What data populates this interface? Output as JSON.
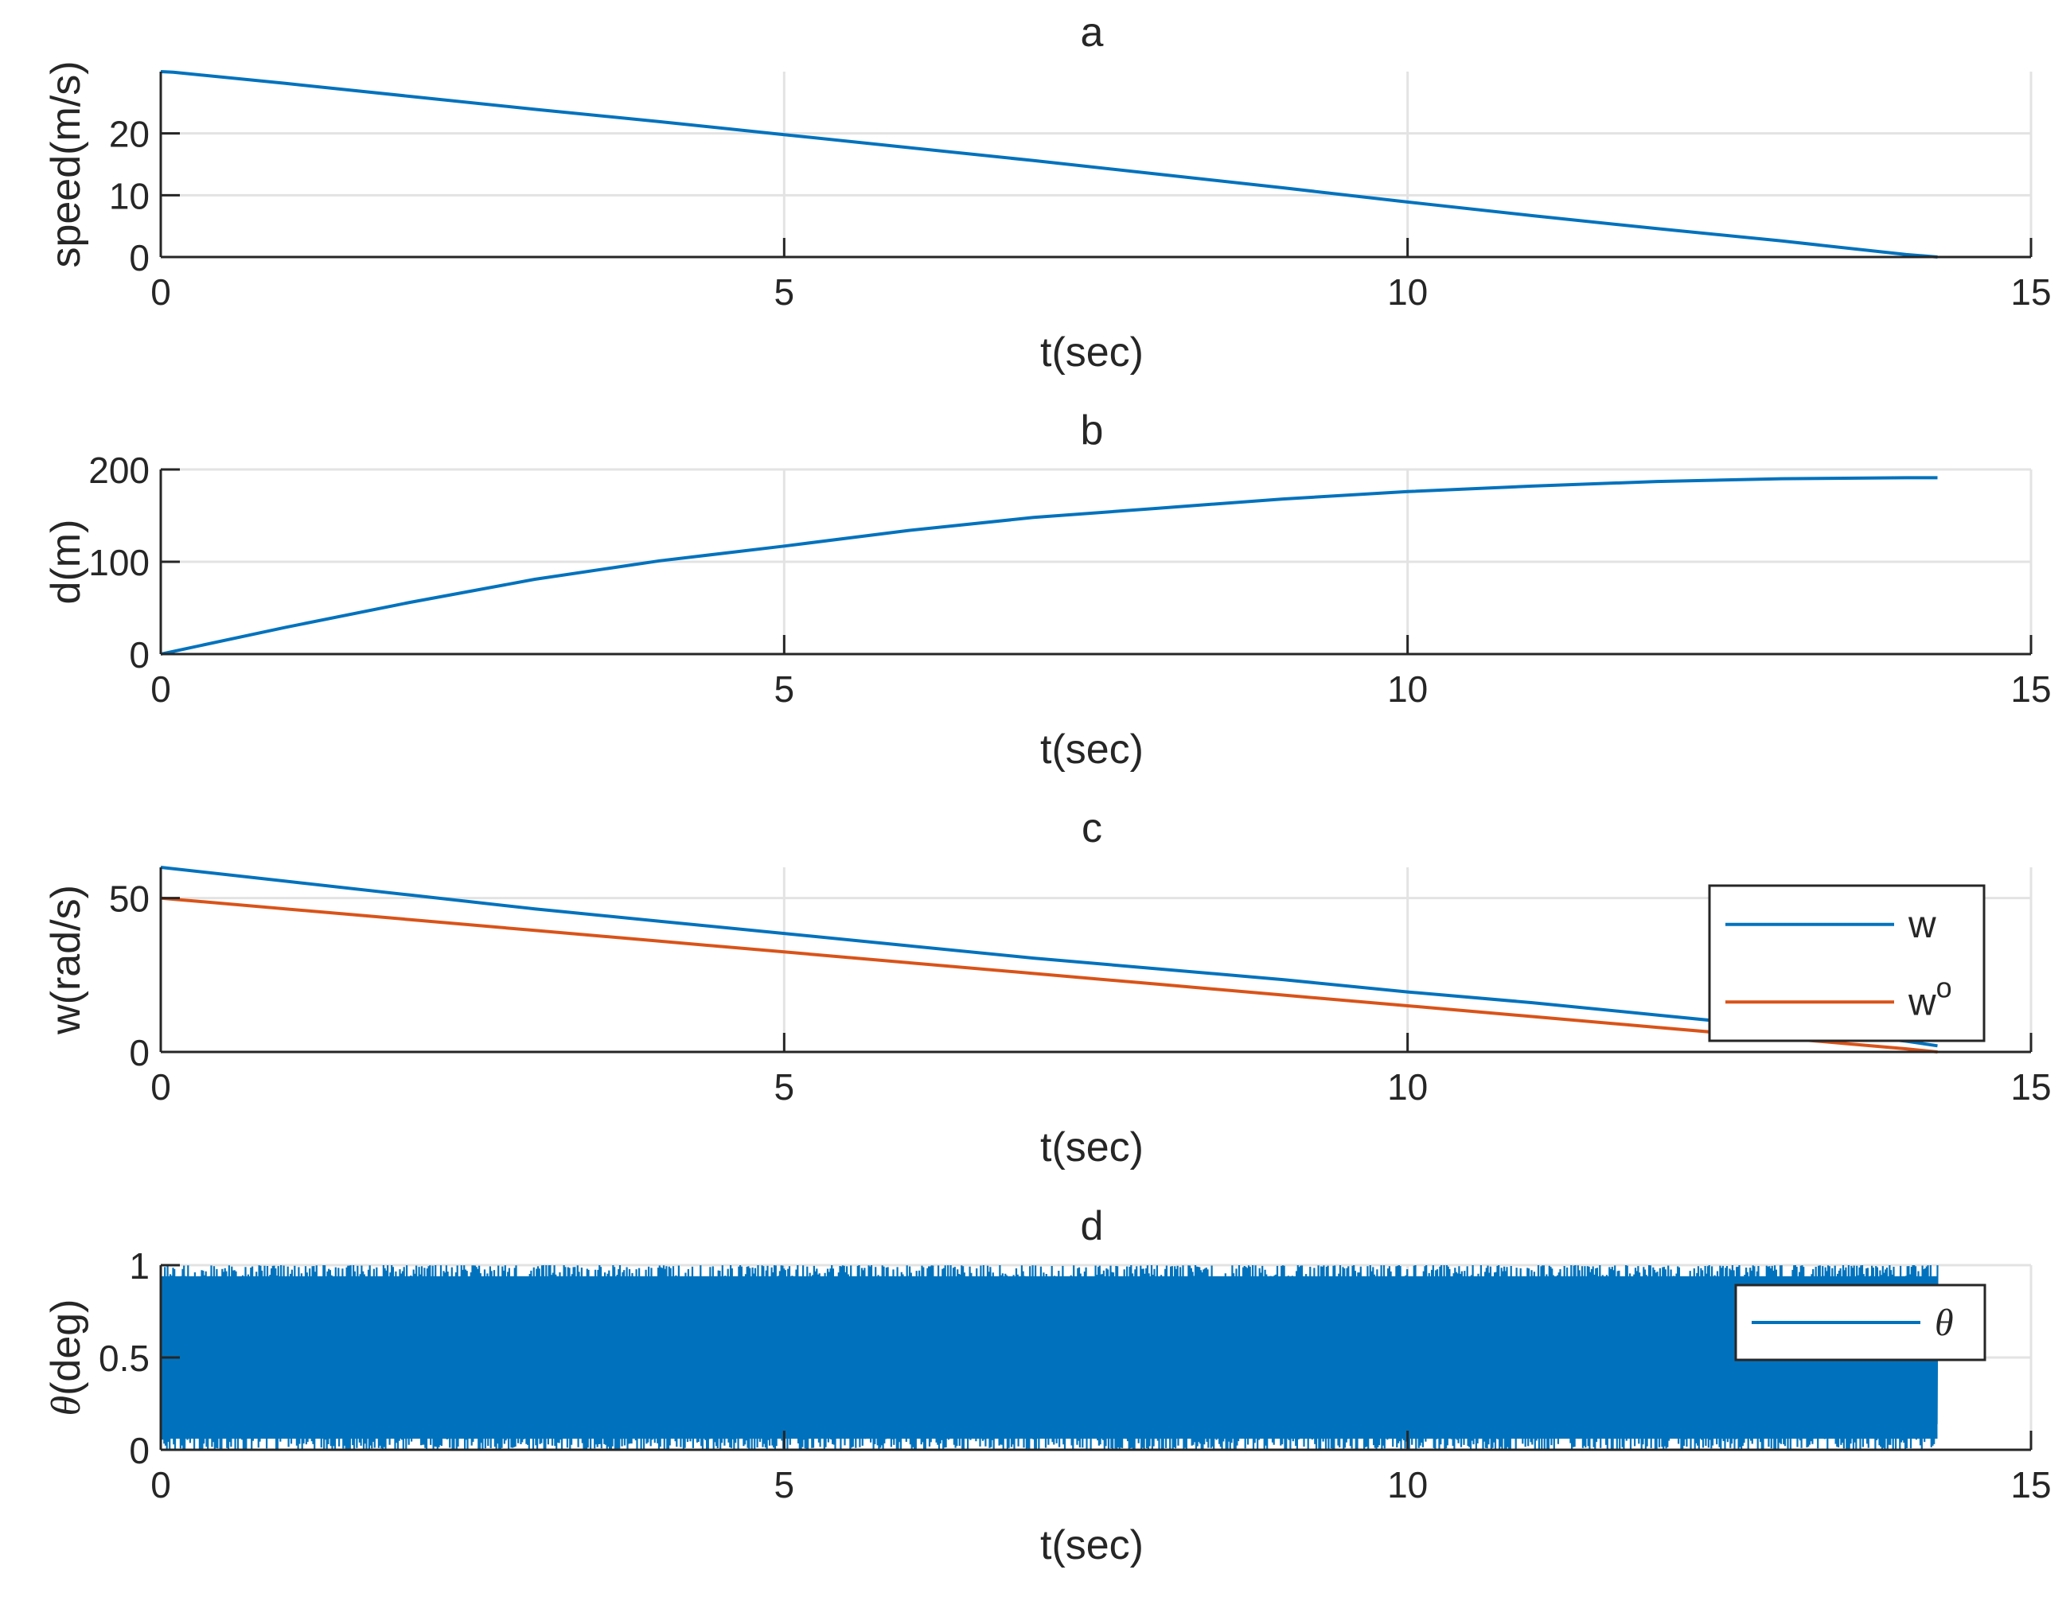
{
  "colors": {
    "blue": "#0072BD",
    "orange": "#D95319",
    "grid": "#E3E3E3",
    "axis": "#262626"
  },
  "chart_data": [
    {
      "type": "line",
      "title": "a",
      "xlabel": "t(sec)",
      "ylabel": "speed(m/s)",
      "xlim": [
        0,
        15
      ],
      "ylim": [
        0,
        30
      ],
      "xticks": [
        0,
        5,
        10,
        15
      ],
      "yticks": [
        0,
        10,
        20
      ],
      "grid": true,
      "series": [
        {
          "color": "#0072BD",
          "x": [
            0,
            0.1,
            1,
            2,
            3,
            4,
            5,
            6,
            7,
            8,
            9,
            10,
            11,
            12,
            13,
            14,
            14.25
          ],
          "y": [
            30,
            29.9,
            28.1,
            26.0,
            23.9,
            21.9,
            19.8,
            17.7,
            15.6,
            13.4,
            11.2,
            8.9,
            6.7,
            4.6,
            2.6,
            0.4,
            0
          ]
        }
      ]
    },
    {
      "type": "line",
      "title": "b",
      "xlabel": "t(sec)",
      "ylabel": "d(m)",
      "xlim": [
        0,
        15
      ],
      "ylim": [
        0,
        200
      ],
      "xticks": [
        0,
        5,
        10,
        15
      ],
      "yticks": [
        0,
        100,
        200
      ],
      "grid": true,
      "series": [
        {
          "color": "#0072BD",
          "x": [
            0,
            1,
            2,
            3,
            4,
            5,
            6,
            7,
            8,
            9,
            10,
            11,
            12,
            13,
            14,
            14.25
          ],
          "y": [
            0,
            29,
            56,
            81,
            101,
            117,
            134,
            148,
            158,
            168,
            176,
            182,
            187,
            190,
            191,
            191
          ]
        }
      ]
    },
    {
      "type": "line",
      "title": "c",
      "xlabel": "t(sec)",
      "ylabel": "w(rad/s)",
      "xlim": [
        0,
        15
      ],
      "ylim": [
        0,
        60
      ],
      "xticks": [
        0,
        5,
        10,
        15
      ],
      "yticks": [
        0,
        50
      ],
      "grid": true,
      "legend": "right",
      "series": [
        {
          "name": "w",
          "color": "#0072BD",
          "x": [
            0,
            1,
            2,
            3,
            4,
            5,
            6,
            7,
            8,
            9,
            10,
            11,
            12,
            13,
            14,
            14.25
          ],
          "y": [
            60,
            55.5,
            51,
            46.5,
            42.5,
            38.5,
            34.5,
            30.5,
            27,
            23.5,
            19.5,
            16,
            12,
            8,
            3.5,
            2
          ]
        },
        {
          "name": "w",
          "name_superscript": "o",
          "color": "#D95319",
          "x": [
            0,
            1,
            2,
            3,
            4,
            5,
            6,
            7,
            8,
            9,
            10,
            11,
            12,
            13,
            14,
            14.25
          ],
          "y": [
            50,
            46.5,
            43,
            39.5,
            36,
            32.5,
            29,
            25.5,
            22,
            18.5,
            15,
            11.5,
            8,
            4.5,
            1,
            0
          ]
        }
      ]
    },
    {
      "type": "line",
      "title": "d",
      "xlabel": "t(sec)",
      "ylabel_symbol": "θ",
      "ylabel": "(deg)",
      "xlim": [
        0,
        15
      ],
      "ylim": [
        0,
        1
      ],
      "xticks": [
        0,
        5,
        10,
        15
      ],
      "yticks": [
        0,
        0.5,
        1
      ],
      "ytick_labels": [
        "0",
        "0.5",
        "1"
      ],
      "grid": true,
      "legend": "right",
      "series": [
        {
          "name": "θ",
          "color": "#0072BD",
          "kind": "uniform random noise",
          "x_range": [
            0,
            14.25
          ],
          "y_range": [
            0,
            1
          ]
        }
      ]
    }
  ]
}
